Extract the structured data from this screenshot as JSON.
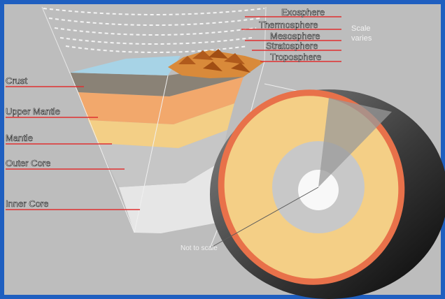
{
  "atmosphere_labels": [
    "Exosphere",
    "Thermosphere",
    "Mesosphere",
    "Stratosphere",
    "Troposphere"
  ],
  "layer_labels": [
    "Crust",
    "Upper Mantle",
    "Mantle",
    "Outer Core",
    "Inner Core"
  ],
  "side_note": [
    "Scale",
    "varies"
  ],
  "bottom_note": "Not to scale",
  "colors": {
    "frame": "#1f5fc0",
    "background": "#bdbdbd",
    "leader": "#e03030",
    "crust": "#8c8478",
    "upper_mantle": "#f2a86c",
    "mantle": "#f4cf86",
    "outer_core": "#c8c8c8",
    "inner_core": "#e8e8e8",
    "ocean": "#a7d3e6",
    "sphere_rim": "#e8714a"
  }
}
